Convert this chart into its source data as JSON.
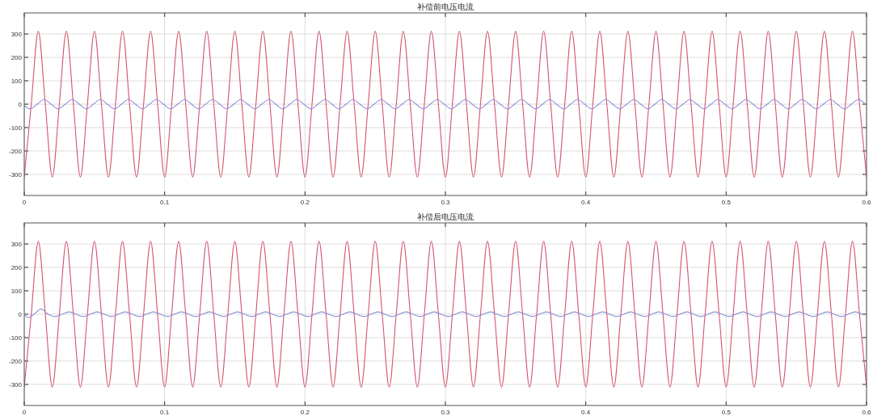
{
  "chart_data": [
    {
      "type": "line",
      "title": "补偿前电压电流",
      "xlim": [
        0,
        0.6
      ],
      "ylim": [
        -390,
        390
      ],
      "xticks": [
        0,
        0.1,
        0.2,
        0.3,
        0.4,
        0.5,
        0.6
      ],
      "yticks": [
        -300,
        -200,
        -100,
        0,
        100,
        200,
        300
      ],
      "grid": true,
      "series": [
        {
          "color": "#d4566e",
          "x": [
            0,
            0.005,
            0.01,
            0.015,
            0.02,
            0.025,
            0.03,
            0.035,
            0.04,
            0.045,
            0.05,
            0.055,
            0.06,
            0.065,
            0.07,
            0.075,
            0.08,
            0.085,
            0.09,
            0.095,
            0.1,
            0.105,
            0.11,
            0.115,
            0.12,
            0.125,
            0.13,
            0.135,
            0.14,
            0.145,
            0.15,
            0.155,
            0.16,
            0.165,
            0.17,
            0.175,
            0.18,
            0.185,
            0.19,
            0.195,
            0.2,
            0.205,
            0.21,
            0.215,
            0.22,
            0.225,
            0.23,
            0.235,
            0.24,
            0.245,
            0.25,
            0.255,
            0.26,
            0.265,
            0.27,
            0.275,
            0.28,
            0.285,
            0.29,
            0.295,
            0.3,
            0.305,
            0.31,
            0.315,
            0.32,
            0.325,
            0.33,
            0.335,
            0.34,
            0.345,
            0.35,
            0.355,
            0.36,
            0.365,
            0.37,
            0.375,
            0.38,
            0.385,
            0.39,
            0.395,
            0.4,
            0.405,
            0.41,
            0.415,
            0.42,
            0.425,
            0.43,
            0.435,
            0.44,
            0.445,
            0.45,
            0.455,
            0.46,
            0.465,
            0.47,
            0.475,
            0.48,
            0.485,
            0.49,
            0.495,
            0.5,
            0.505,
            0.51,
            0.515,
            0.52,
            0.525,
            0.53,
            0.535,
            0.54,
            0.545,
            0.55,
            0.555,
            0.56,
            0.565,
            0.57,
            0.575,
            0.58,
            0.585,
            0.59,
            0.595,
            0.6
          ],
          "values": [
            -311,
            0,
            311,
            0,
            -311,
            0,
            311,
            0,
            -311,
            0,
            311,
            0,
            -311,
            0,
            311,
            0,
            -311,
            0,
            311,
            0,
            -311,
            0,
            311,
            0,
            -311,
            0,
            311,
            0,
            -311,
            0,
            311,
            0,
            -311,
            0,
            311,
            0,
            -311,
            0,
            311,
            0,
            -311,
            0,
            311,
            0,
            -311,
            0,
            311,
            0,
            -311,
            0,
            311,
            0,
            -311,
            0,
            311,
            0,
            -311,
            0,
            311,
            0,
            -311,
            0,
            311,
            0,
            -311,
            0,
            311,
            0,
            -311,
            0,
            311,
            0,
            -311,
            0,
            311,
            0,
            -311,
            0,
            311,
            0,
            -311,
            0,
            311,
            0,
            -311,
            0,
            311,
            0,
            -311,
            0,
            311,
            0,
            -311,
            0,
            311,
            0,
            -311,
            0,
            311,
            0,
            -311,
            0,
            311,
            0,
            -311,
            0,
            311,
            0,
            -311,
            0,
            311,
            0,
            -311,
            0,
            311,
            0,
            -311,
            0,
            311,
            0,
            -311
          ]
        },
        {
          "color": "#8c8fd6",
          "x": [
            0,
            0.0042,
            0.0092,
            0.0142,
            0.0192,
            0.0242,
            0.0292,
            0.0342,
            0.0392,
            0.0442,
            0.0492,
            0.0542,
            0.0592,
            0.0642,
            0.0692,
            0.0742,
            0.0792,
            0.0842,
            0.0892,
            0.0942,
            0.0992,
            0.1042,
            0.1092,
            0.1142,
            0.1192,
            0.1242,
            0.1292,
            0.1342,
            0.1392,
            0.1442,
            0.1492,
            0.1542,
            0.1592,
            0.1642,
            0.1692,
            0.1742,
            0.1792,
            0.1842,
            0.1892,
            0.1942,
            0.1992,
            0.2042,
            0.2092,
            0.2142,
            0.2192,
            0.2242,
            0.2292,
            0.2342,
            0.2392,
            0.2442,
            0.2492,
            0.2542,
            0.2592,
            0.2642,
            0.2692,
            0.2742,
            0.2792,
            0.2842,
            0.2892,
            0.2942,
            0.2992,
            0.3042,
            0.3092,
            0.3142,
            0.3192,
            0.3242,
            0.3292,
            0.3342,
            0.3392,
            0.3442,
            0.3492,
            0.3542,
            0.3592,
            0.3642,
            0.3692,
            0.3742,
            0.3792,
            0.3842,
            0.3892,
            0.3942,
            0.3992,
            0.4042,
            0.4092,
            0.4142,
            0.4192,
            0.4242,
            0.4292,
            0.4342,
            0.4392,
            0.4442,
            0.4492,
            0.4542,
            0.4592,
            0.4642,
            0.4692,
            0.4742,
            0.4792,
            0.4842,
            0.4892,
            0.4942,
            0.4992,
            0.5042,
            0.5092,
            0.5142,
            0.5192,
            0.5242,
            0.5292,
            0.5342,
            0.5392,
            0.5442,
            0.5492,
            0.5542,
            0.5592,
            0.5642,
            0.5692,
            0.5742,
            0.5792,
            0.5842,
            0.5892,
            0.5942,
            0.5992
          ],
          "values": [
            -5,
            -20,
            0,
            20,
            0,
            -20,
            0,
            20,
            0,
            -20,
            0,
            20,
            0,
            -20,
            0,
            20,
            0,
            -20,
            0,
            20,
            0,
            -20,
            0,
            20,
            0,
            -20,
            0,
            20,
            0,
            -20,
            0,
            20,
            0,
            -20,
            0,
            20,
            0,
            -20,
            0,
            20,
            0,
            -20,
            0,
            20,
            0,
            -20,
            0,
            20,
            0,
            -20,
            0,
            20,
            0,
            -20,
            0,
            20,
            0,
            -20,
            0,
            20,
            0,
            -20,
            0,
            20,
            0,
            -20,
            0,
            20,
            0,
            -20,
            0,
            20,
            0,
            -20,
            0,
            20,
            0,
            -20,
            0,
            20,
            0,
            -20,
            0,
            20,
            0,
            -20,
            0,
            20,
            0,
            -20,
            0,
            20,
            0,
            -20,
            0,
            20,
            0,
            -20,
            0,
            20,
            0,
            -20,
            0,
            20,
            0,
            -20,
            0,
            20,
            0,
            -20,
            0,
            20,
            0,
            -20,
            0,
            20,
            0,
            -20,
            0,
            20,
            0
          ]
        }
      ]
    },
    {
      "type": "line",
      "title": "补偿后电压电流",
      "xlim": [
        0,
        0.6
      ],
      "ylim": [
        -390,
        390
      ],
      "xticks": [
        0,
        0.1,
        0.2,
        0.3,
        0.4,
        0.5,
        0.6
      ],
      "yticks": [
        -300,
        -200,
        -100,
        0,
        100,
        200,
        300
      ],
      "grid": true,
      "series": [
        {
          "color": "#d4566e",
          "x": [
            0,
            0.005,
            0.01,
            0.015,
            0.02,
            0.025,
            0.03,
            0.035,
            0.04,
            0.045,
            0.05,
            0.055,
            0.06,
            0.065,
            0.07,
            0.075,
            0.08,
            0.085,
            0.09,
            0.095,
            0.1,
            0.105,
            0.11,
            0.115,
            0.12,
            0.125,
            0.13,
            0.135,
            0.14,
            0.145,
            0.15,
            0.155,
            0.16,
            0.165,
            0.17,
            0.175,
            0.18,
            0.185,
            0.19,
            0.195,
            0.2,
            0.205,
            0.21,
            0.215,
            0.22,
            0.225,
            0.23,
            0.235,
            0.24,
            0.245,
            0.25,
            0.255,
            0.26,
            0.265,
            0.27,
            0.275,
            0.28,
            0.285,
            0.29,
            0.295,
            0.3,
            0.305,
            0.31,
            0.315,
            0.32,
            0.325,
            0.33,
            0.335,
            0.34,
            0.345,
            0.35,
            0.355,
            0.36,
            0.365,
            0.37,
            0.375,
            0.38,
            0.385,
            0.39,
            0.395,
            0.4,
            0.405,
            0.41,
            0.415,
            0.42,
            0.425,
            0.43,
            0.435,
            0.44,
            0.445,
            0.45,
            0.455,
            0.46,
            0.465,
            0.47,
            0.475,
            0.48,
            0.485,
            0.49,
            0.495,
            0.5,
            0.505,
            0.51,
            0.515,
            0.52,
            0.525,
            0.53,
            0.535,
            0.54,
            0.545,
            0.55,
            0.555,
            0.56,
            0.565,
            0.57,
            0.575,
            0.58,
            0.585,
            0.59,
            0.595,
            0.6
          ],
          "values": [
            -311,
            0,
            311,
            0,
            -311,
            0,
            311,
            0,
            -311,
            0,
            311,
            0,
            -311,
            0,
            311,
            0,
            -311,
            0,
            311,
            0,
            -311,
            0,
            311,
            0,
            -311,
            0,
            311,
            0,
            -311,
            0,
            311,
            0,
            -311,
            0,
            311,
            0,
            -311,
            0,
            311,
            0,
            -311,
            0,
            311,
            0,
            -311,
            0,
            311,
            0,
            -311,
            0,
            311,
            0,
            -311,
            0,
            311,
            0,
            -311,
            0,
            311,
            0,
            -311,
            0,
            311,
            0,
            -311,
            0,
            311,
            0,
            -311,
            0,
            311,
            0,
            -311,
            0,
            311,
            0,
            -311,
            0,
            311,
            0,
            -311,
            0,
            311,
            0,
            -311,
            0,
            311,
            0,
            -311,
            0,
            311,
            0,
            -311,
            0,
            311,
            0,
            -311,
            0,
            311,
            0,
            -311,
            0,
            311,
            0,
            -311,
            0,
            311,
            0,
            -311,
            0,
            311,
            0,
            -311,
            0,
            311,
            0,
            -311,
            0,
            311,
            0,
            -311
          ]
        },
        {
          "color": "#8c8fd6",
          "x": [
            0,
            0.003,
            0.007,
            0.012,
            0.017,
            0.022,
            0.027,
            0.032,
            0.037,
            0.042,
            0.047,
            0.052,
            0.057,
            0.062,
            0.067,
            0.072,
            0.077,
            0.082,
            0.087,
            0.092,
            0.097,
            0.102,
            0.107,
            0.112,
            0.117,
            0.122,
            0.127,
            0.132,
            0.137,
            0.142,
            0.147,
            0.152,
            0.157,
            0.162,
            0.167,
            0.172,
            0.177,
            0.182,
            0.187,
            0.192,
            0.197,
            0.202,
            0.207,
            0.212,
            0.217,
            0.222,
            0.227,
            0.232,
            0.237,
            0.242,
            0.247,
            0.252,
            0.257,
            0.262,
            0.267,
            0.272,
            0.277,
            0.282,
            0.287,
            0.292,
            0.297,
            0.302,
            0.307,
            0.312,
            0.317,
            0.322,
            0.327,
            0.332,
            0.337,
            0.342,
            0.347,
            0.352,
            0.357,
            0.362,
            0.367,
            0.372,
            0.377,
            0.382,
            0.387,
            0.392,
            0.397,
            0.402,
            0.407,
            0.412,
            0.417,
            0.422,
            0.427,
            0.432,
            0.437,
            0.442,
            0.447,
            0.452,
            0.457,
            0.462,
            0.467,
            0.472,
            0.477,
            0.482,
            0.487,
            0.492,
            0.497,
            0.502,
            0.507,
            0.512,
            0.517,
            0.522,
            0.527,
            0.532,
            0.537,
            0.542,
            0.547,
            0.552,
            0.557,
            0.562,
            0.567,
            0.572,
            0.577,
            0.582,
            0.587,
            0.592,
            0.597
          ],
          "values": [
            0,
            -15,
            0,
            22,
            0,
            -10,
            0,
            10,
            0,
            -10,
            0,
            10,
            0,
            -10,
            0,
            10,
            0,
            -10,
            0,
            10,
            0,
            -10,
            0,
            10,
            0,
            -10,
            0,
            10,
            0,
            -10,
            0,
            10,
            0,
            -10,
            0,
            10,
            0,
            -10,
            0,
            10,
            0,
            -10,
            0,
            10,
            0,
            -10,
            0,
            10,
            0,
            -10,
            0,
            10,
            0,
            -10,
            0,
            10,
            0,
            -10,
            0,
            10,
            0,
            -10,
            0,
            10,
            0,
            -10,
            0,
            10,
            0,
            -10,
            0,
            10,
            0,
            -10,
            0,
            10,
            0,
            -10,
            0,
            10,
            0,
            -10,
            0,
            10,
            0,
            -10,
            0,
            10,
            0,
            -10,
            0,
            10,
            0,
            -10,
            0,
            10,
            0,
            -10,
            0,
            10,
            0,
            -10,
            0,
            10,
            0,
            -10,
            0,
            10,
            0,
            -10,
            0,
            10,
            0,
            -10,
            0,
            10,
            0,
            -10,
            0,
            10,
            0
          ]
        }
      ]
    }
  ]
}
